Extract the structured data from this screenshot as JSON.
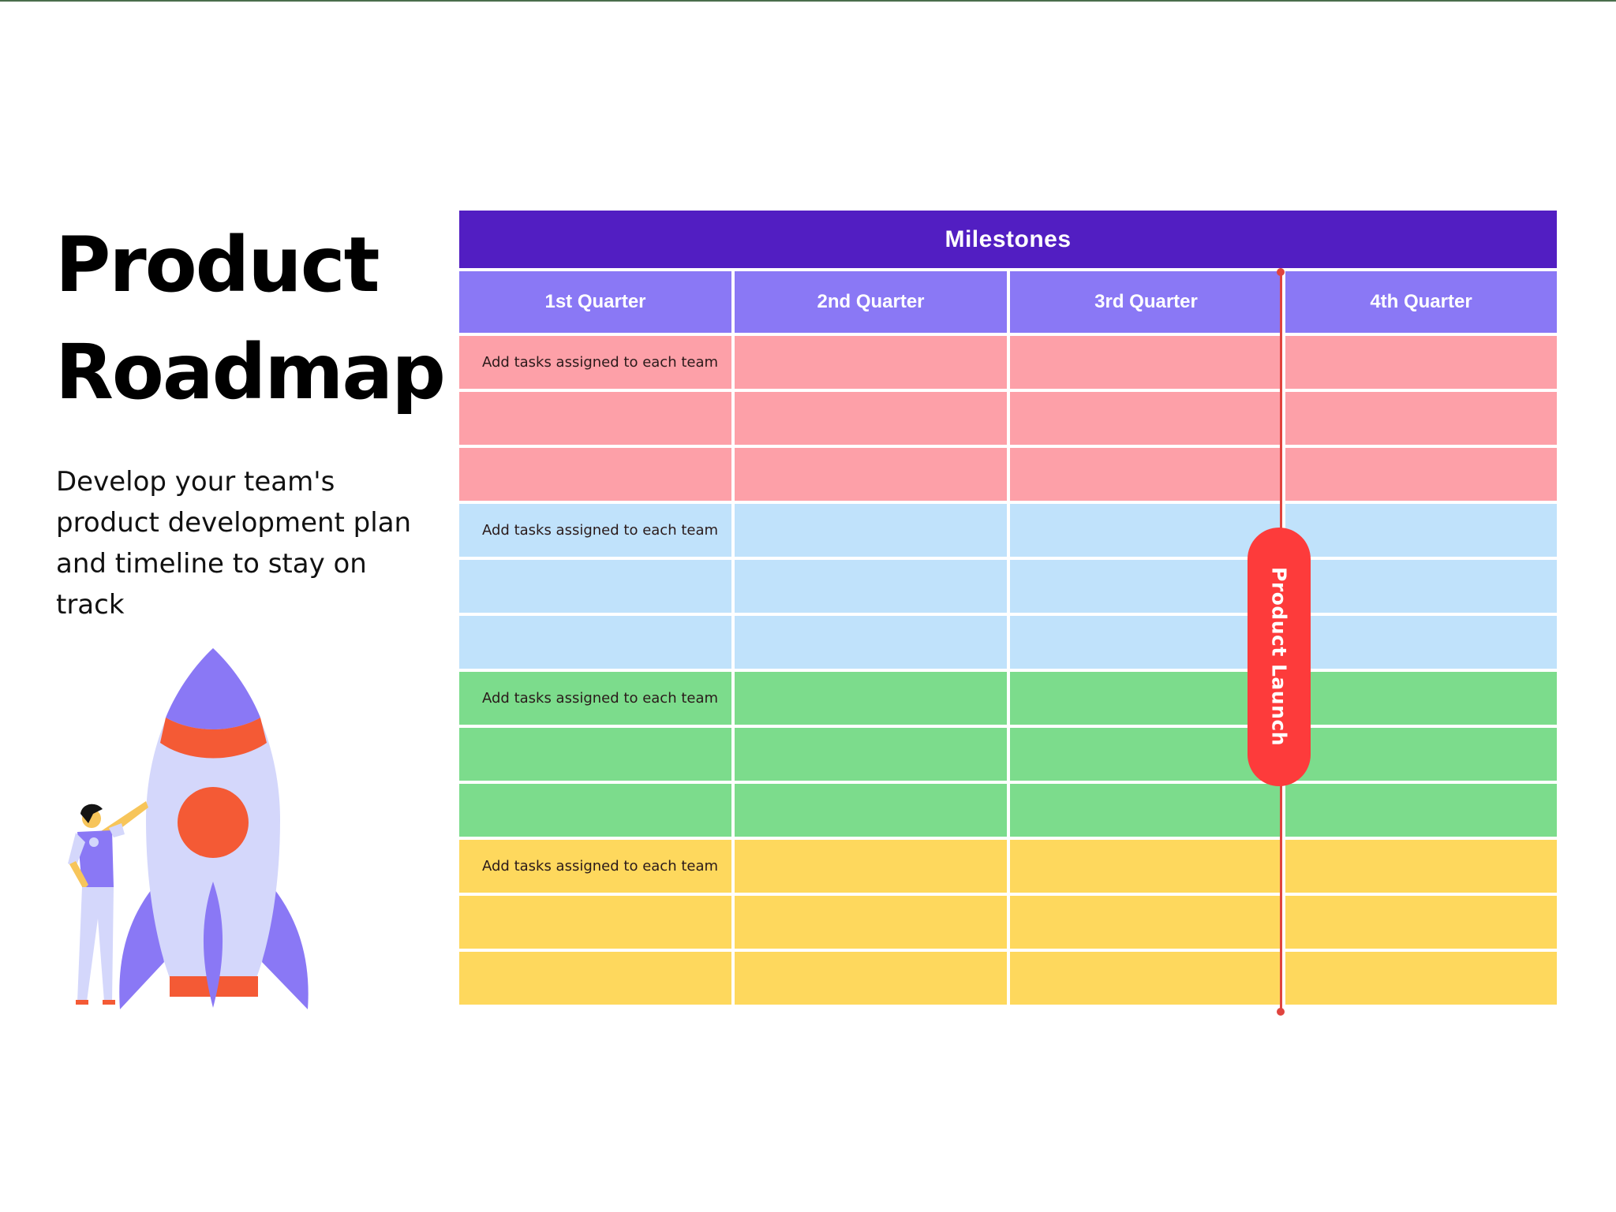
{
  "title_lines": [
    "Product",
    "Roadmap"
  ],
  "description": "Develop your team's product development plan and timeline to stay on track",
  "roadmap": {
    "header": "Milestones",
    "quarters": [
      "1st Quarter",
      "2nd Quarter",
      "3rd Quarter",
      "4th Quarter"
    ],
    "teams": [
      {
        "color": "#fda0a8",
        "rows": [
          [
            "Add tasks assigned to each team",
            "",
            "",
            ""
          ],
          [
            "",
            "",
            "",
            ""
          ],
          [
            "",
            "",
            "",
            ""
          ]
        ]
      },
      {
        "color": "#c0e2fb",
        "rows": [
          [
            "Add tasks assigned to each team",
            "",
            "",
            ""
          ],
          [
            "",
            "",
            "",
            ""
          ],
          [
            "",
            "",
            "",
            ""
          ]
        ]
      },
      {
        "color": "#7cdc8c",
        "rows": [
          [
            "Add tasks assigned to each team",
            "",
            "",
            ""
          ],
          [
            "",
            "",
            "",
            ""
          ],
          [
            "",
            "",
            "",
            ""
          ]
        ]
      },
      {
        "color": "#fed85d",
        "rows": [
          [
            "Add tasks assigned to each team",
            "",
            "",
            ""
          ],
          [
            "",
            "",
            "",
            ""
          ],
          [
            "",
            "",
            "",
            ""
          ]
        ]
      }
    ],
    "launch_marker": {
      "label": "Product Launch",
      "color": "#fd3b3b"
    }
  },
  "colors": {
    "milestone_header": "#521ec2",
    "quarter_header": "#8a78f5",
    "rocket_body": "#d4d7fb",
    "rocket_accent": "#8a78f5",
    "rocket_orange": "#f45a35"
  }
}
